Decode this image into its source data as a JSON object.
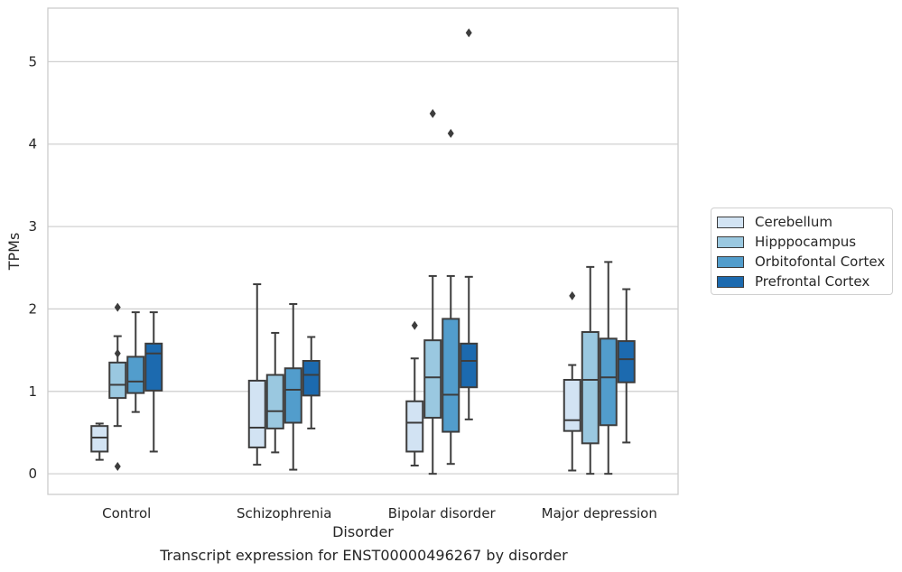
{
  "chart_data": {
    "type": "box",
    "title": "",
    "caption": "Transcript expression for ENST00000496267 by disorder",
    "xlabel": "Disorder",
    "ylabel": "TPMs",
    "ylim": [
      -0.25,
      5.65
    ],
    "yticks": [
      0,
      1,
      2,
      3,
      4,
      5
    ],
    "grid": "horizontal",
    "legend_position": "right",
    "categories": [
      "Control",
      "Schizophrenia",
      "Bipolar disorder",
      "Major depression"
    ],
    "series": [
      {
        "name": "Cerebellum",
        "color": "#d2e3f3",
        "boxes": [
          {
            "whislo": 0.17,
            "q1": 0.27,
            "med": 0.44,
            "q3": 0.58,
            "whishi": 0.61,
            "fliers": []
          },
          {
            "whislo": 0.11,
            "q1": 0.32,
            "med": 0.56,
            "q3": 1.13,
            "whishi": 2.3,
            "fliers": []
          },
          {
            "whislo": 0.1,
            "q1": 0.27,
            "med": 0.62,
            "q3": 0.88,
            "whishi": 1.4,
            "fliers": [
              1.8
            ]
          },
          {
            "whislo": 0.04,
            "q1": 0.52,
            "med": 0.65,
            "q3": 1.14,
            "whishi": 1.32,
            "fliers": [
              2.16
            ]
          }
        ]
      },
      {
        "name": "Hipppocampus",
        "color": "#9ac8e0",
        "boxes": [
          {
            "whislo": 0.58,
            "q1": 0.92,
            "med": 1.08,
            "q3": 1.35,
            "whishi": 1.67,
            "fliers": [
              2.02,
              1.46,
              0.09
            ]
          },
          {
            "whislo": 0.26,
            "q1": 0.55,
            "med": 0.76,
            "q3": 1.2,
            "whishi": 1.71,
            "fliers": []
          },
          {
            "whislo": 0.0,
            "q1": 0.68,
            "med": 1.17,
            "q3": 1.62,
            "whishi": 2.4,
            "fliers": [
              4.37
            ]
          },
          {
            "whislo": 0.0,
            "q1": 0.37,
            "med": 1.14,
            "q3": 1.72,
            "whishi": 2.51,
            "fliers": []
          }
        ]
      },
      {
        "name": "Orbitofontal Cortex",
        "color": "#529dcc",
        "boxes": [
          {
            "whislo": 0.75,
            "q1": 0.98,
            "med": 1.12,
            "q3": 1.42,
            "whishi": 1.96,
            "fliers": []
          },
          {
            "whislo": 0.05,
            "q1": 0.62,
            "med": 1.02,
            "q3": 1.28,
            "whishi": 2.06,
            "fliers": []
          },
          {
            "whislo": 0.12,
            "q1": 0.51,
            "med": 0.96,
            "q3": 1.88,
            "whishi": 2.4,
            "fliers": [
              4.13
            ]
          },
          {
            "whislo": 0.0,
            "q1": 0.59,
            "med": 1.17,
            "q3": 1.64,
            "whishi": 2.57,
            "fliers": []
          }
        ]
      },
      {
        "name": "Prefrontal Cortex",
        "color": "#1c6aaf",
        "boxes": [
          {
            "whislo": 0.27,
            "q1": 1.01,
            "med": 1.46,
            "q3": 1.58,
            "whishi": 1.96,
            "fliers": []
          },
          {
            "whislo": 0.55,
            "q1": 0.95,
            "med": 1.2,
            "q3": 1.37,
            "whishi": 1.66,
            "fliers": []
          },
          {
            "whislo": 0.66,
            "q1": 1.05,
            "med": 1.37,
            "q3": 1.58,
            "whishi": 2.39,
            "fliers": [
              5.35
            ]
          },
          {
            "whislo": 0.38,
            "q1": 1.11,
            "med": 1.39,
            "q3": 1.61,
            "whishi": 2.24,
            "fliers": []
          }
        ]
      }
    ]
  }
}
